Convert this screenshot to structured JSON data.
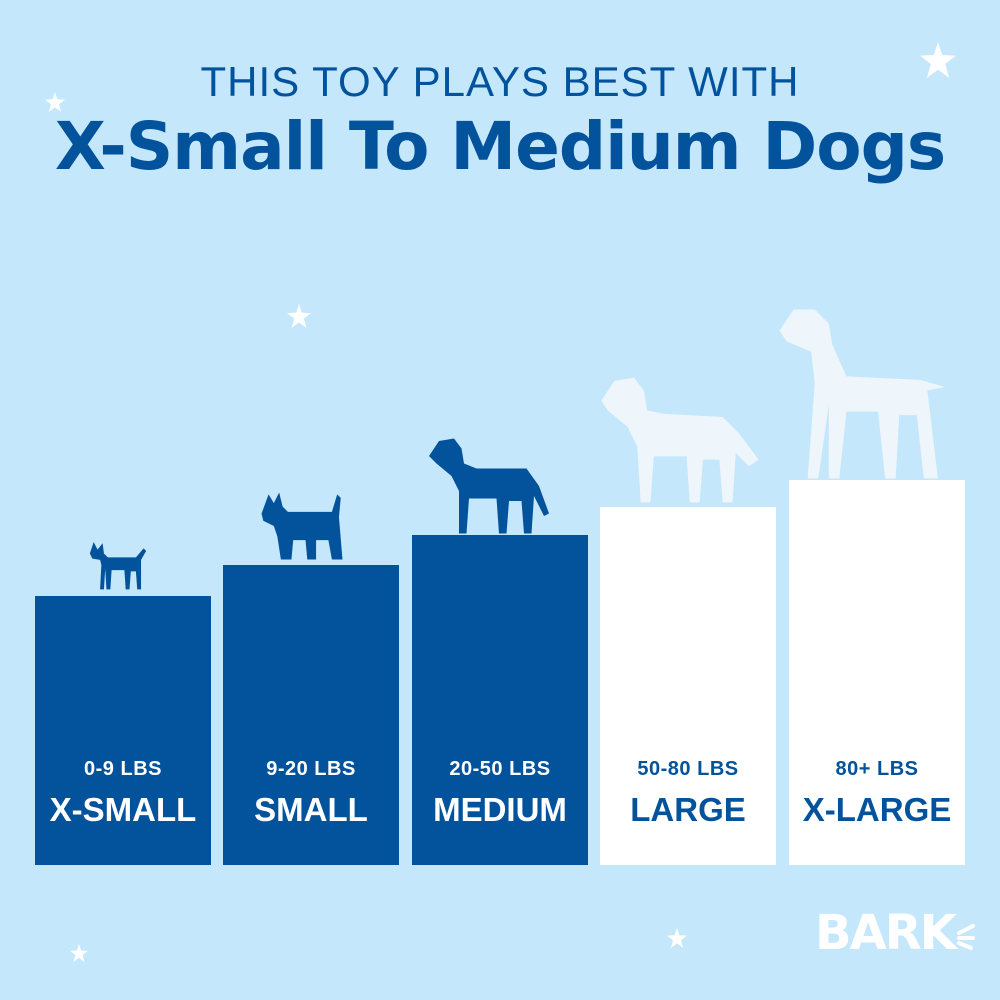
{
  "header": {
    "line1": "THIS TOY PLAYS BEST WITH",
    "line2": "X-Small To Medium Dogs"
  },
  "colors": {
    "background": "#c4e7fb",
    "recommended": "#02529c",
    "not_recommended": "#ffffff"
  },
  "sizes": [
    {
      "weight": "0-9 LBS",
      "label": "X-SMALL",
      "recommended": true,
      "icon": "chihuahua-icon"
    },
    {
      "weight": "9-20 LBS",
      "label": "SMALL",
      "recommended": true,
      "icon": "terrier-icon"
    },
    {
      "weight": "20-50 LBS",
      "label": "MEDIUM",
      "recommended": true,
      "icon": "labrador-icon"
    },
    {
      "weight": "50-80 LBS",
      "label": "LARGE",
      "recommended": false,
      "icon": "retriever-icon"
    },
    {
      "weight": "80+ LBS",
      "label": "X-LARGE",
      "recommended": false,
      "icon": "great-dane-icon"
    }
  ],
  "logo": {
    "text": "BARK"
  }
}
